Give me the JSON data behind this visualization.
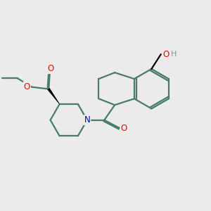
{
  "bg_color": "#ebebeb",
  "bond_color": "#4a7a6a",
  "bond_width": 1.6,
  "atom_colors": {
    "O": "#ff0000",
    "N": "#0000cc",
    "C": "#000000",
    "H": "#7a9a9a"
  },
  "figsize": [
    3.0,
    3.0
  ],
  "dpi": 100
}
